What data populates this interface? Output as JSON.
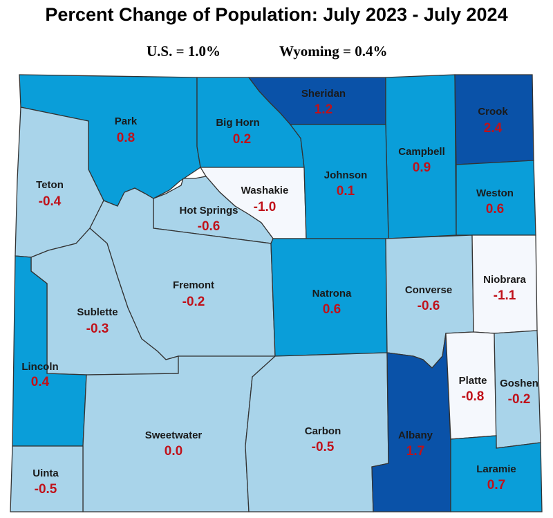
{
  "title": "Percent Change of Population: July 2023 - July 2024",
  "us_stat": "U.S. = 1.0%",
  "wyoming_stat": "Wyoming = 0.4%",
  "colors": {
    "decline": "#f5f8fd",
    "low": "#a9d4ea",
    "medium": "#0a9ed9",
    "high": "#0a52a8",
    "border": "#333333",
    "label": "#1a1a1a",
    "value": "#c0111a"
  },
  "counties": [
    {
      "name": "Park",
      "value": "0.8"
    },
    {
      "name": "Big Horn",
      "value": "0.2"
    },
    {
      "name": "Sheridan",
      "value": "1.2"
    },
    {
      "name": "Campbell",
      "value": "0.9"
    },
    {
      "name": "Crook",
      "value": "2.4"
    },
    {
      "name": "Teton",
      "value": "-0.4"
    },
    {
      "name": "Washakie",
      "value": "-1.0"
    },
    {
      "name": "Johnson",
      "value": "0.1"
    },
    {
      "name": "Weston",
      "value": "0.6"
    },
    {
      "name": "Hot Springs",
      "value": "-0.6"
    },
    {
      "name": "Fremont",
      "value": "-0.2"
    },
    {
      "name": "Sublette",
      "value": "-0.3"
    },
    {
      "name": "Natrona",
      "value": "0.6"
    },
    {
      "name": "Converse",
      "value": "-0.6"
    },
    {
      "name": "Niobrara",
      "value": "-1.1"
    },
    {
      "name": "Lincoln",
      "value": "0.4"
    },
    {
      "name": "Sweetwater",
      "value": "0.0"
    },
    {
      "name": "Carbon",
      "value": "-0.5"
    },
    {
      "name": "Albany",
      "value": "1.7"
    },
    {
      "name": "Platte",
      "value": "-0.8"
    },
    {
      "name": "Goshen",
      "value": "-0.2"
    },
    {
      "name": "Uinta",
      "value": "-0.5"
    },
    {
      "name": "Laramie",
      "value": "0.7"
    }
  ]
}
